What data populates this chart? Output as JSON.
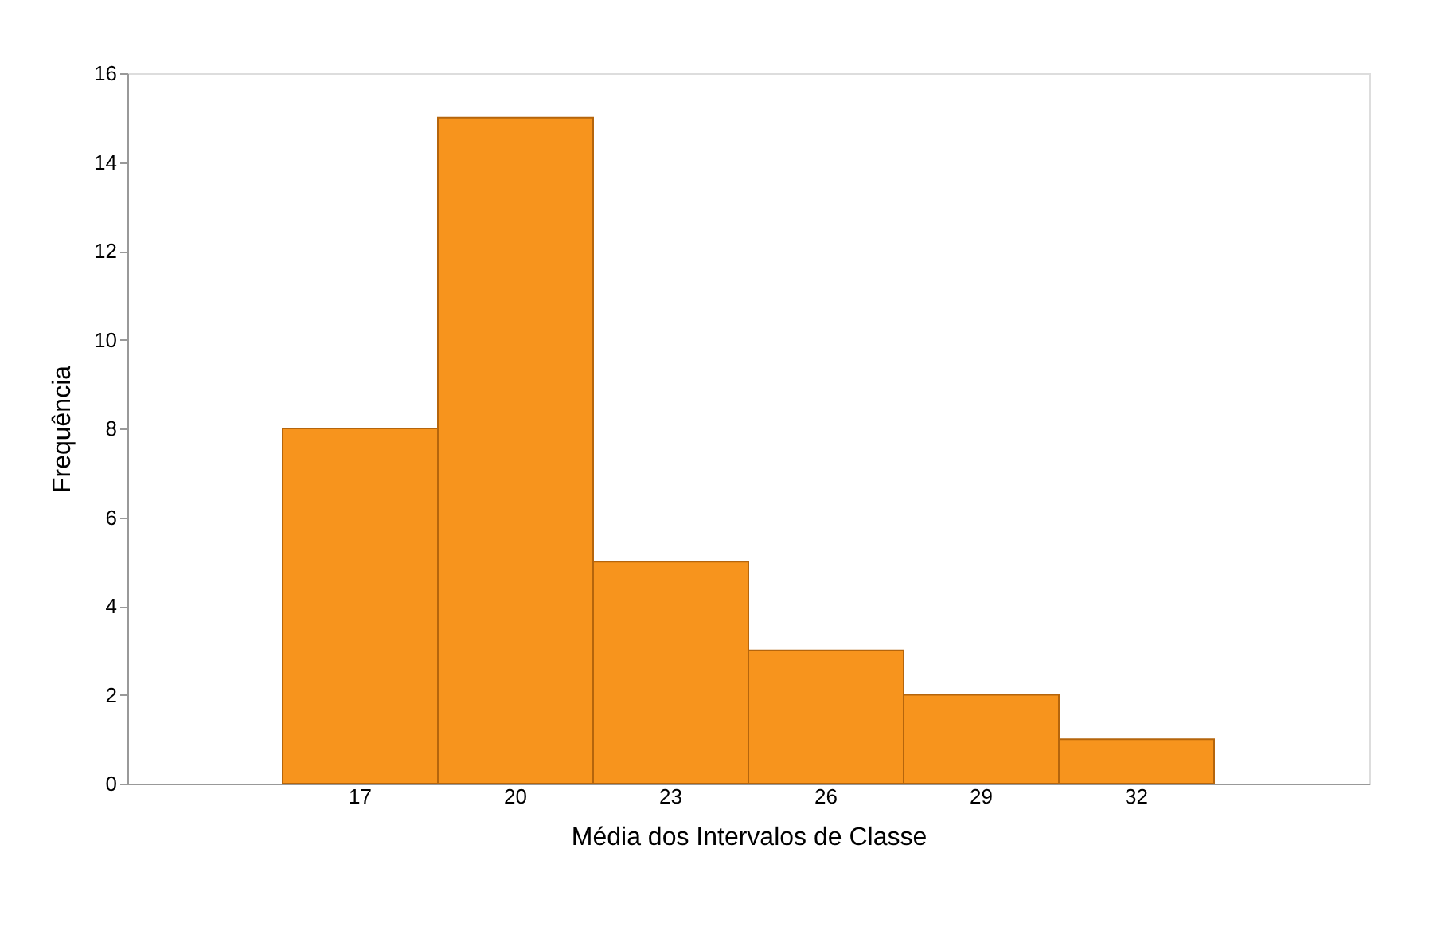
{
  "chart_data": {
    "type": "bar",
    "xlabel": "Média dos Intervalos de Classe",
    "ylabel": "Frequência",
    "categories": [
      null,
      "17",
      "20",
      "23",
      "26",
      "29",
      "32",
      null
    ],
    "values": [
      null,
      8,
      15,
      5,
      3,
      2,
      1,
      null
    ],
    "color": "#f7941d",
    "ylim": [
      0,
      16
    ],
    "yticks": [
      0,
      2,
      4,
      6,
      8,
      10,
      12,
      14,
      16
    ],
    "grid": false
  }
}
